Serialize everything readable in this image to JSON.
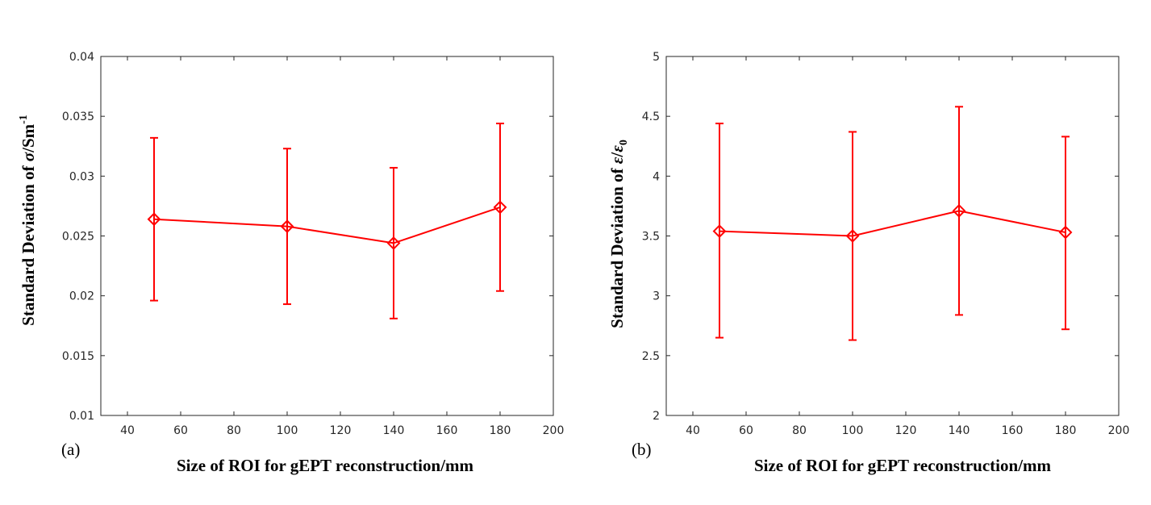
{
  "chart_data": [
    {
      "type": "line",
      "panel_label": "(a)",
      "xlabel": "Size of ROI for gEPT reconstruction/mm",
      "ylabel": "Standard Deviation of σ/Sm⁻¹",
      "xlim": [
        30,
        200
      ],
      "ylim": [
        0.01,
        0.04
      ],
      "xticks": [
        "40",
        "60",
        "80",
        "100",
        "120",
        "140",
        "160",
        "180",
        "200"
      ],
      "yticks": [
        "0.01",
        "0.015",
        "0.02",
        "0.025",
        "0.03",
        "0.035",
        "0.04"
      ],
      "grid": false,
      "series": [
        {
          "name": "sigma",
          "color": "#ff0000",
          "marker": "diamond",
          "x": [
            50,
            100,
            140,
            180
          ],
          "values": [
            0.0264,
            0.0258,
            0.0244,
            0.0274
          ],
          "error_low": [
            0.0196,
            0.0193,
            0.0181,
            0.0204
          ],
          "error_high": [
            0.0332,
            0.0323,
            0.0307,
            0.0344
          ]
        }
      ]
    },
    {
      "type": "line",
      "panel_label": "(b)",
      "xlabel": "Size of ROI for gEPT reconstruction/mm",
      "ylabel": "Standard Deviation of ε/ε₀",
      "xlim": [
        30,
        200
      ],
      "ylim": [
        2,
        5
      ],
      "xticks": [
        "40",
        "60",
        "80",
        "100",
        "120",
        "140",
        "160",
        "180",
        "200"
      ],
      "yticks": [
        "2",
        "2.5",
        "3",
        "3.5",
        "4",
        "4.5",
        "5"
      ],
      "grid": false,
      "series": [
        {
          "name": "epsilon",
          "color": "#ff0000",
          "marker": "diamond",
          "x": [
            50,
            100,
            140,
            180
          ],
          "values": [
            3.54,
            3.5,
            3.71,
            3.53
          ],
          "error_low": [
            2.65,
            2.63,
            2.84,
            2.72
          ],
          "error_high": [
            4.44,
            4.37,
            4.58,
            4.33
          ]
        }
      ]
    }
  ]
}
